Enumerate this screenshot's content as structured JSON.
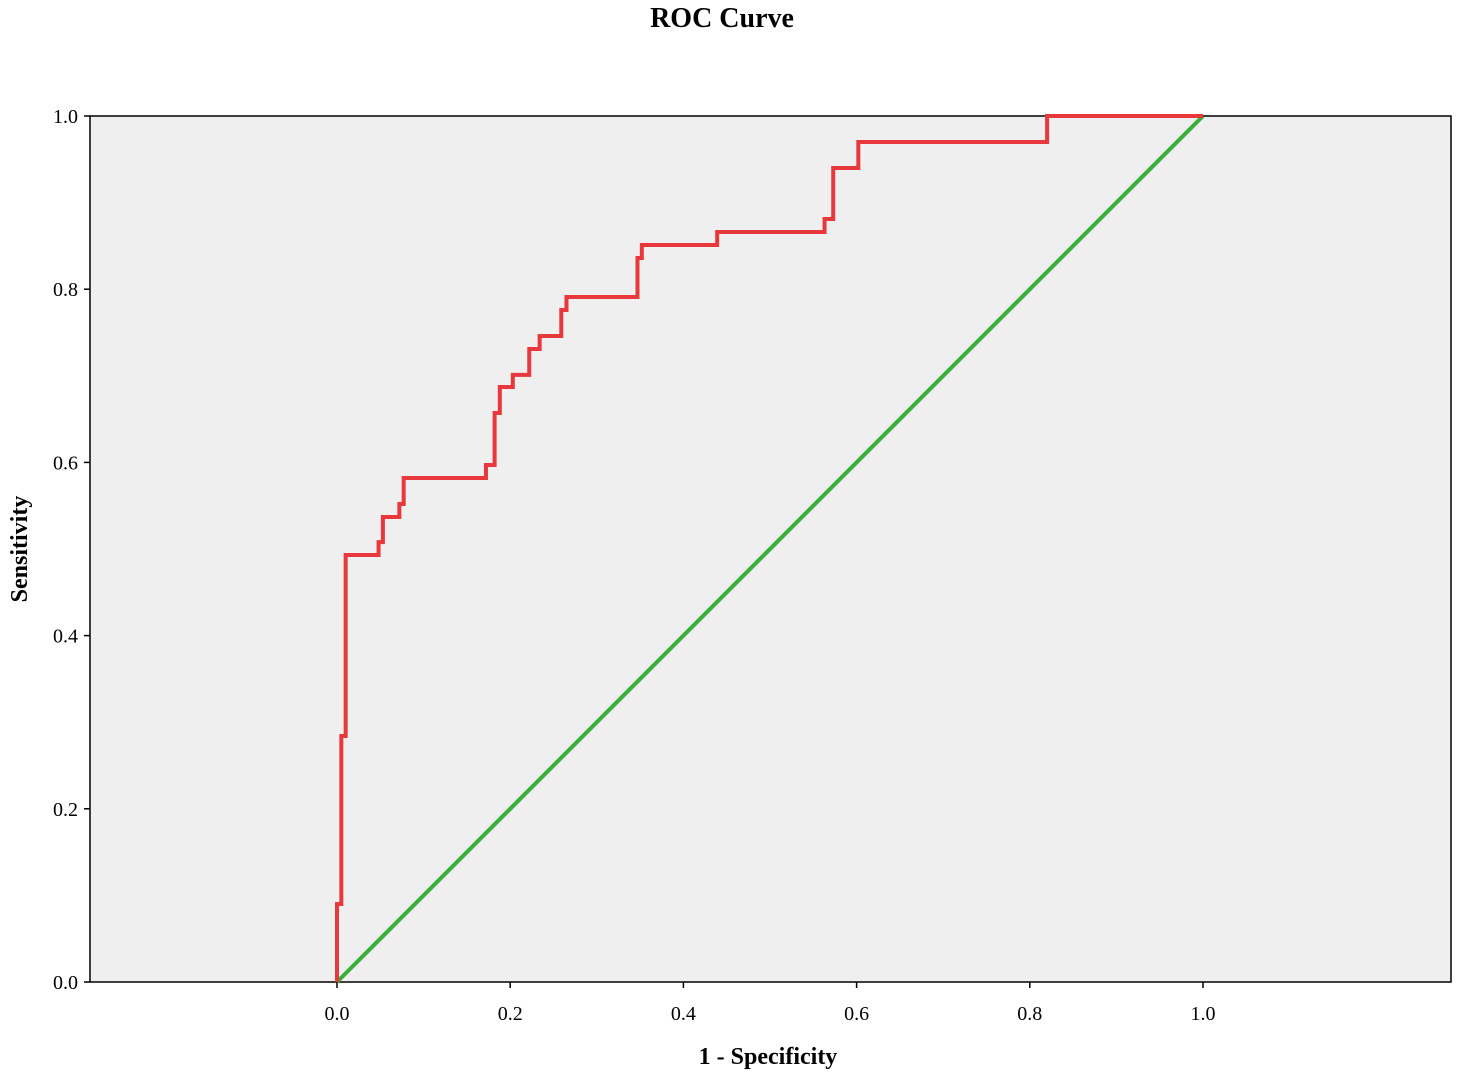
{
  "chart_data": {
    "type": "line",
    "title": "ROC Curve",
    "xlabel": "1 - Specificity",
    "ylabel": "Sensitivity",
    "xlim": [
      0.0,
      1.0
    ],
    "ylim": [
      0.0,
      1.0
    ],
    "x_ticks": [
      "0.0",
      "0.2",
      "0.4",
      "0.6",
      "0.8",
      "1.0"
    ],
    "y_ticks": [
      "0.0",
      "0.2",
      "0.4",
      "0.6",
      "0.8",
      "1.0"
    ],
    "plot_background": "#efefef",
    "grid": false,
    "legend": "none",
    "series": [
      {
        "color": "#e8383b",
        "step": true,
        "x": [
          0.0,
          0.0,
          0.005,
          0.005,
          0.01,
          0.01,
          0.048,
          0.048,
          0.053,
          0.053,
          0.072,
          0.072,
          0.077,
          0.077,
          0.172,
          0.172,
          0.182,
          0.182,
          0.188,
          0.188,
          0.203,
          0.203,
          0.222,
          0.222,
          0.234,
          0.234,
          0.259,
          0.259,
          0.265,
          0.265,
          0.347,
          0.347,
          0.352,
          0.352,
          0.439,
          0.439,
          0.563,
          0.563,
          0.573,
          0.573,
          0.602,
          0.602,
          0.82,
          0.82,
          1.0
        ],
        "y": [
          0.0,
          0.09,
          0.09,
          0.284,
          0.284,
          0.493,
          0.493,
          0.508,
          0.508,
          0.537,
          0.537,
          0.552,
          0.552,
          0.582,
          0.582,
          0.597,
          0.597,
          0.657,
          0.657,
          0.687,
          0.687,
          0.701,
          0.701,
          0.731,
          0.731,
          0.746,
          0.746,
          0.776,
          0.776,
          0.791,
          0.791,
          0.836,
          0.836,
          0.851,
          0.851,
          0.866,
          0.866,
          0.881,
          0.881,
          0.94,
          0.94,
          0.97,
          0.97,
          1.0,
          1.0
        ]
      },
      {
        "color": "#3aae3a",
        "x": [
          0.0,
          1.0
        ],
        "y": [
          0.0,
          1.0
        ]
      }
    ]
  }
}
